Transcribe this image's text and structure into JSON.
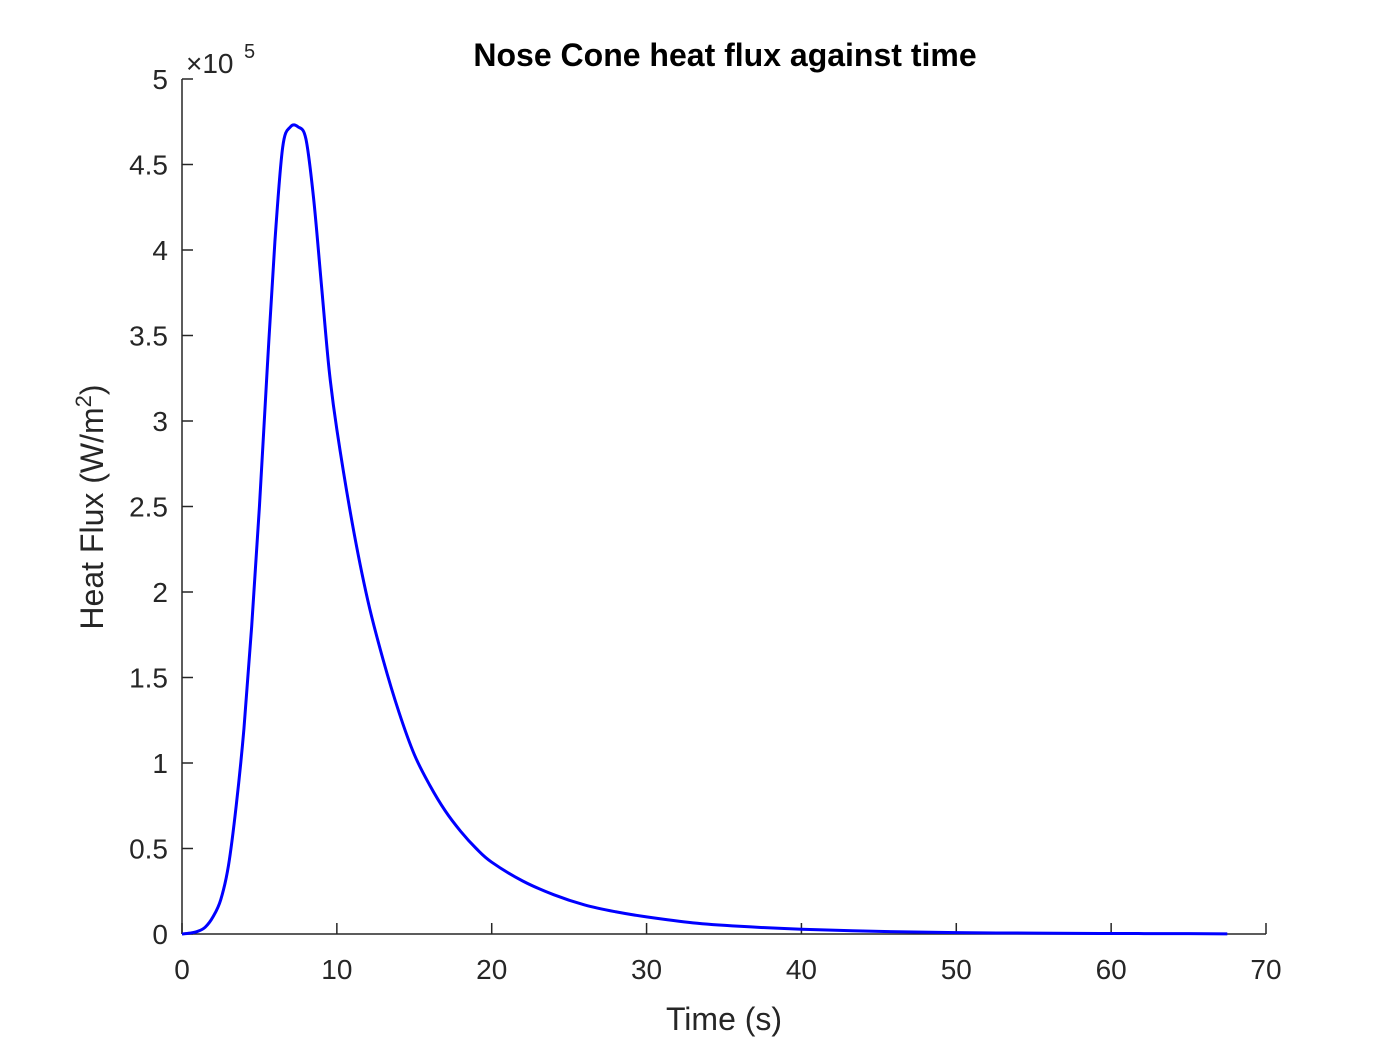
{
  "chart_data": {
    "type": "line",
    "title": "Nose Cone heat flux against time",
    "xlabel": "Time (s)",
    "ylabel_base": "Heat Flux (W/m",
    "ylabel_sup": "2",
    "ylabel_close": ")",
    "y_exponent_prefix": "×10",
    "y_exponent_power": "5",
    "y_multiplier": 100000,
    "xlim": [
      0,
      70
    ],
    "ylim": [
      0,
      5
    ],
    "xticks": [
      "0",
      "10",
      "20",
      "30",
      "40",
      "50",
      "60",
      "70"
    ],
    "yticks": [
      "0",
      "0.5",
      "1",
      "1.5",
      "2",
      "2.5",
      "3",
      "3.5",
      "4",
      "4.5",
      "5"
    ],
    "grid": false,
    "legend": "none",
    "series": [
      {
        "color": "#0000ff",
        "x": [
          0,
          0.5,
          1,
          1.5,
          2,
          2.5,
          3,
          3.5,
          4,
          4.5,
          5,
          5.5,
          6,
          6.5,
          7,
          7.5,
          8,
          8.5,
          9,
          9.5,
          10,
          11,
          12,
          13,
          14,
          15,
          16,
          17,
          18,
          19,
          20,
          22,
          24,
          26,
          28,
          30,
          33,
          36,
          40,
          45,
          50,
          55,
          60,
          65,
          67.5
        ],
        "y": [
          0,
          0.005,
          0.015,
          0.04,
          0.1,
          0.2,
          0.4,
          0.75,
          1.2,
          1.8,
          2.5,
          3.3,
          4.05,
          4.6,
          4.72,
          4.72,
          4.65,
          4.3,
          3.8,
          3.3,
          2.95,
          2.4,
          1.95,
          1.6,
          1.3,
          1.05,
          0.87,
          0.72,
          0.6,
          0.5,
          0.42,
          0.31,
          0.23,
          0.17,
          0.13,
          0.1,
          0.065,
          0.045,
          0.028,
          0.015,
          0.008,
          0.005,
          0.003,
          0.002,
          0.001
        ]
      }
    ]
  }
}
